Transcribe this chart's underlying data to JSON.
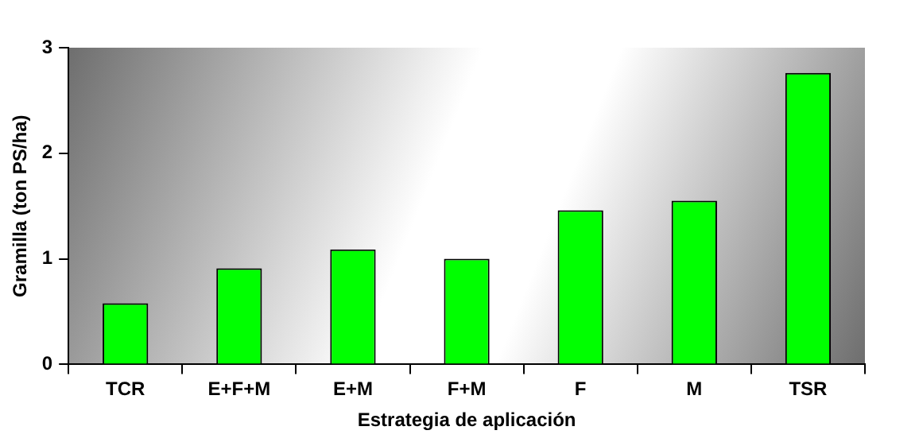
{
  "chart_data": {
    "type": "bar",
    "xlabel": "Estrategia de aplicación",
    "ylabel": "Gramilla (ton PS/ha)",
    "categories": [
      "TCR",
      "E+F+M",
      "E+M",
      "F+M",
      "F",
      "M",
      "TSR"
    ],
    "values": [
      0.58,
      0.91,
      1.09,
      1.0,
      1.46,
      1.55,
      2.76
    ],
    "color": "#00ff00",
    "ylim": [
      0,
      3
    ],
    "yticks": [
      0,
      1,
      2,
      3
    ],
    "grid": false,
    "legend": false
  }
}
